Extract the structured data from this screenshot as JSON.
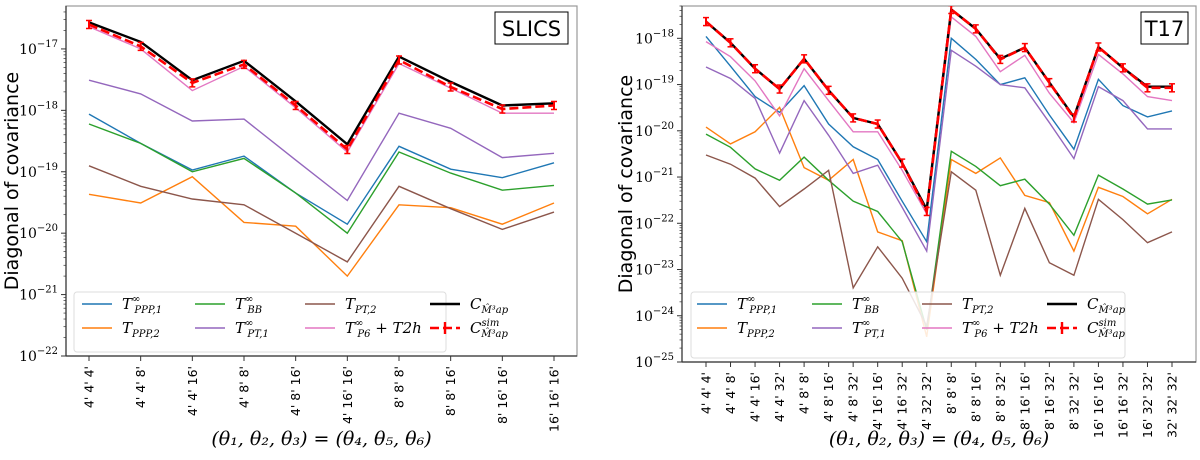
{
  "chart_data": [
    {
      "type": "line",
      "title": "",
      "tag": "SLICS",
      "xlabel": "(θ1, θ2, θ3) = (θ4, θ5, θ6)",
      "ylabel": "Diagonal of covariance",
      "yscale": "log",
      "ylim": [
        1e-22,
        5e-17
      ],
      "ytick_exponents": [
        -22,
        -21,
        -20,
        -19,
        -18,
        -17
      ],
      "grid": false,
      "legend_placement": "lower-center",
      "categories": [
        "4' 4' 4'",
        "4' 4' 8'",
        "4' 4' 16'",
        "4' 8' 8'",
        "4' 8' 16'",
        "4' 16' 16'",
        "8' 8' 8'",
        "8' 8' 16'",
        "8' 16' 16'",
        "16' 16' 16'"
      ],
      "series": [
        {
          "key": "TPPP1",
          "name": "T∞ PPP,1",
          "color": "#1f77b4",
          "style": "solid",
          "values": [
            8.7e-19,
            2.9e-19,
            1.07e-19,
            1.8e-19,
            4.5e-20,
            1.4e-20,
            2.6e-19,
            1.1e-19,
            8e-20,
            1.4e-19
          ]
        },
        {
          "key": "TPPP2",
          "name": "T PPP,2",
          "color": "#ff7f0e",
          "style": "solid",
          "values": [
            4.3e-20,
            3.1e-20,
            8.3e-20,
            1.5e-20,
            1.3e-20,
            2e-21,
            2.9e-20,
            2.6e-20,
            1.4e-20,
            3.1e-20
          ]
        },
        {
          "key": "TBB",
          "name": "T∞ BB",
          "color": "#2ca02c",
          "style": "solid",
          "values": [
            6e-19,
            2.9e-19,
            1e-19,
            1.65e-19,
            4.5e-20,
            1e-20,
            2.1e-19,
            9.5e-20,
            5e-20,
            6e-20
          ]
        },
        {
          "key": "TPT1",
          "name": "T∞ PT,1",
          "color": "#9467bd",
          "style": "solid",
          "values": [
            3.1e-18,
            1.85e-18,
            6.7e-19,
            7.2e-19,
            1.55e-19,
            3.4e-20,
            9e-19,
            5.1e-19,
            1.7e-19,
            2e-19
          ]
        },
        {
          "key": "TPT2",
          "name": "T PT,2",
          "color": "#8c564b",
          "style": "solid",
          "values": [
            1.25e-19,
            5.8e-20,
            3.6e-20,
            2.9e-20,
            1e-20,
            3.4e-21,
            5.8e-20,
            2.5e-20,
            1.15e-20,
            2.2e-20
          ]
        },
        {
          "key": "TP6",
          "name": "T∞ P6 + T2h",
          "color": "#e377c2",
          "style": "solid",
          "values": [
            2.3e-17,
            1e-17,
            2.1e-18,
            5.2e-18,
            1.1e-18,
            2.1e-19,
            5.8e-18,
            2.3e-18,
            9e-19,
            9e-19
          ]
        },
        {
          "key": "C",
          "name": "C M̂ap³",
          "color": "#000000",
          "style": "thick",
          "values": [
            2.7e-17,
            1.3e-17,
            3.1e-18,
            6.4e-18,
            1.4e-18,
            2.8e-19,
            7.5e-18,
            2.9e-18,
            1.2e-18,
            1.3e-18
          ]
        },
        {
          "key": "Csim",
          "name": "C sim M̂ap³",
          "color": "#ff0000",
          "style": "dashed-errorbar",
          "values": [
            2.5e-17,
            1.1e-17,
            2.8e-18,
            5.6e-18,
            1.2e-18,
            2.3e-19,
            6.6e-18,
            2.4e-18,
            1.05e-18,
            1.2e-18
          ]
        }
      ]
    },
    {
      "type": "line",
      "title": "",
      "tag": "T17",
      "xlabel": "(θ1, θ2, θ3) = (θ4, θ5, θ6)",
      "ylabel": "Diagonal of covariance",
      "yscale": "log",
      "ylim": [
        1e-25,
        5e-18
      ],
      "ytick_exponents": [
        -25,
        -24,
        -23,
        -22,
        -21,
        -20,
        -19,
        -18
      ],
      "grid": false,
      "legend_placement": "lower-center",
      "categories": [
        "4' 4' 4'",
        "4' 4' 8'",
        "4' 4' 16'",
        "4' 4' 32'",
        "4' 8' 8'",
        "4' 8' 16'",
        "4' 8' 32'",
        "4' 16' 16'",
        "4' 16' 32'",
        "4' 32' 32'",
        "8' 8' 8'",
        "8' 8' 16'",
        "8' 8' 32'",
        "8' 16' 16'",
        "8' 16' 32'",
        "8' 32' 32'",
        "16' 16' 16'",
        "16' 16' 32'",
        "16' 32' 32'",
        "32' 32' 32'"
      ],
      "series": [
        {
          "key": "TPPP1",
          "name": "T∞ PPP,1",
          "color": "#1f77b4",
          "style": "solid",
          "values": [
            1.1e-18,
            2.5e-19,
            5.5e-20,
            2.5e-20,
            9.5e-20,
            1.4e-20,
            4.5e-21,
            2.4e-21,
            3e-22,
            4e-23,
            1e-18,
            3.5e-19,
            1e-19,
            1.4e-19,
            2.2e-20,
            4e-21,
            1.3e-19,
            3.5e-20,
            2e-20,
            2.7e-20
          ]
        },
        {
          "key": "TPPP2",
          "name": "T PPP,2",
          "color": "#ff7f0e",
          "style": "solid",
          "values": [
            1.2e-20,
            5.2e-21,
            9.5e-21,
            3.2e-20,
            1.6e-21,
            8.5e-22,
            2.4e-21,
            6.5e-23,
            4.2e-23,
            3.5e-25,
            2.4e-21,
            1.2e-21,
            2.6e-21,
            4e-22,
            2.8e-22,
            2.5e-23,
            6e-22,
            3.8e-22,
            1.6e-22,
            3.3e-22
          ]
        },
        {
          "key": "TBB",
          "name": "T∞ BB",
          "color": "#2ca02c",
          "style": "solid",
          "values": [
            8.5e-21,
            4.4e-21,
            1.5e-21,
            8.5e-22,
            2.7e-21,
            8.5e-22,
            3e-22,
            1.8e-22,
            4e-23,
            5e-25,
            3.6e-21,
            1.7e-21,
            6.5e-22,
            9e-22,
            2.6e-22,
            5.5e-23,
            1.1e-21,
            5.5e-22,
            2.6e-22,
            3.2e-22
          ]
        },
        {
          "key": "TPT1",
          "name": "T∞ PT,1",
          "color": "#9467bd",
          "style": "solid",
          "values": [
            2.4e-19,
            1.35e-19,
            5e-20,
            3.3e-21,
            4.5e-20,
            8e-21,
            1.2e-21,
            1.8e-21,
            2.2e-22,
            2.5e-23,
            5.5e-19,
            2.5e-19,
            1e-19,
            8.5e-20,
            1.5e-20,
            2.5e-21,
            9e-20,
            4.5e-20,
            1.1e-20,
            1.1e-20
          ]
        },
        {
          "key": "TPT2",
          "name": "T PT,2",
          "color": "#8c564b",
          "style": "solid",
          "values": [
            3e-21,
            1.9e-21,
            9.5e-22,
            2.3e-22,
            5.5e-22,
            1.4e-21,
            4e-24,
            3.1e-23,
            6.5e-24,
            6e-25,
            1.3e-21,
            5.2e-22,
            7.5e-24,
            2.1e-22,
            1.4e-23,
            7.5e-24,
            3.3e-22,
            1.2e-22,
            3.8e-23,
            6.5e-23
          ]
        },
        {
          "key": "TP6",
          "name": "T∞ P6 + T2h",
          "color": "#e377c2",
          "style": "solid",
          "values": [
            8.5e-19,
            4e-19,
            1.2e-19,
            2.1e-20,
            2.2e-19,
            4.5e-20,
            9.5e-21,
            9.5e-21,
            1.4e-21,
            1.6e-22,
            2.9e-18,
            1.1e-18,
            1.9e-19,
            4.3e-19,
            6.5e-20,
            1.5e-20,
            4.5e-19,
            1.7e-19,
            5.5e-20,
            4.5e-20
          ]
        },
        {
          "key": "C",
          "name": "C M̂ap³",
          "color": "#000000",
          "style": "thick",
          "values": [
            2.3e-18,
            8e-19,
            2.2e-19,
            8e-20,
            3.6e-19,
            7.5e-20,
            1.9e-20,
            1.4e-20,
            2e-21,
            2e-22,
            4.2e-18,
            1.6e-18,
            3.6e-19,
            6.3e-19,
            1.1e-19,
            2e-20,
            6.5e-19,
            2.3e-19,
            9e-20,
            9e-20
          ]
        },
        {
          "key": "Csim",
          "name": "C sim M̂ap³",
          "color": "#ff0000",
          "style": "dashed-errorbar",
          "values": [
            2.3e-18,
            8e-19,
            2.2e-19,
            8e-20,
            3.6e-19,
            7.5e-20,
            1.9e-20,
            1.4e-20,
            2e-21,
            1.8e-22,
            4.2e-18,
            1.6e-18,
            3.5e-19,
            6.3e-19,
            1.1e-19,
            1.9e-20,
            6.5e-19,
            2.3e-19,
            8.5e-20,
            8.5e-20
          ]
        }
      ]
    }
  ],
  "legend": {
    "items": [
      {
        "key": "TPPP1",
        "base": "T",
        "sup": "∞",
        "sub": "PPP,1",
        "extra": ""
      },
      {
        "key": "TPPP2",
        "base": "T",
        "sup": "",
        "sub": "PPP,2",
        "extra": ""
      },
      {
        "key": "TBB",
        "base": "T",
        "sup": "∞",
        "sub": "BB",
        "extra": ""
      },
      {
        "key": "TPT1",
        "base": "T",
        "sup": "∞",
        "sub": "PT,1",
        "extra": ""
      },
      {
        "key": "TPT2",
        "base": "T",
        "sup": "",
        "sub": "PT,2",
        "extra": ""
      },
      {
        "key": "TP6",
        "base": "T",
        "sup": "∞",
        "sub": "P6",
        "extra": " + T2h"
      },
      {
        "key": "C",
        "base": "C",
        "sup": "",
        "sub": "M̂³ap",
        "extra": ""
      },
      {
        "key": "Csim",
        "base": "C",
        "sup": "sim",
        "sub": "M̂³ap",
        "extra": ""
      }
    ]
  },
  "labels": {
    "ylabel": "Diagonal of covariance",
    "xlabel": "(θ₁, θ₂, θ₃) = (θ₄, θ₅, θ₆)",
    "left_tag": "SLICS",
    "right_tag": "T17"
  }
}
